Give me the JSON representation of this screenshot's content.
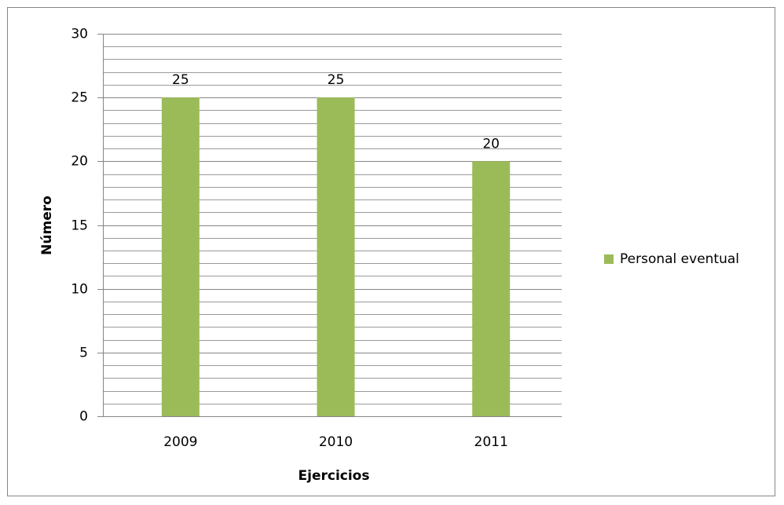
{
  "chart_data": {
    "type": "bar",
    "categories": [
      "2009",
      "2010",
      "2011"
    ],
    "series": [
      {
        "name": "Personal eventual",
        "color": "#9bbb59",
        "values": [
          25,
          25,
          20
        ]
      }
    ],
    "x_label": "Ejercicios",
    "y_label": "Número",
    "ylim": [
      0,
      30
    ],
    "yticks": [
      0,
      5,
      10,
      15,
      20,
      25,
      30
    ],
    "minor_yticks": [
      1,
      2,
      3,
      4,
      6,
      7,
      8,
      9,
      11,
      12,
      13,
      14,
      16,
      17,
      18,
      19,
      21,
      22,
      23,
      24,
      26,
      27,
      28,
      29
    ],
    "grid": true,
    "legend": "right"
  }
}
